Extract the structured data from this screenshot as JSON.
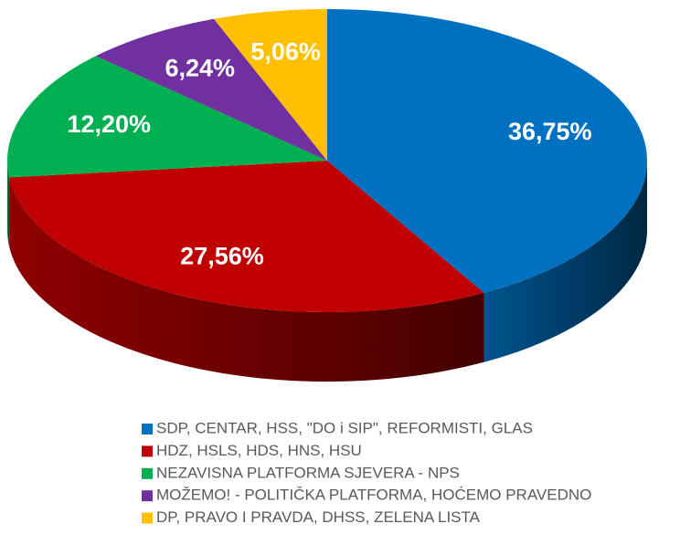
{
  "chart_data": {
    "type": "pie3d",
    "categories": [
      "SDP, CENTAR, HSS, \"DO i SIP\", REFORMISTI, GLAS",
      "HDZ, HSLS, HDS, HNS, HSU",
      "NEZAVISNA PLATFORMA SJEVERA - NPS",
      "MOŽEMO! - POLITIČKA PLATFORMA, HOĆEMO PRAVEDNO",
      "DP, PRAVO I PRAVDA, DHSS, ZELENA LISTA"
    ],
    "values": [
      36.75,
      27.56,
      12.2,
      6.24,
      5.06
    ],
    "value_labels": [
      "36,75%",
      "27,56%",
      "12,20%",
      "6,24%",
      "5,06%"
    ],
    "colors": [
      "#0070C0",
      "#C00000",
      "#00B050",
      "#7030A0",
      "#FFC000"
    ],
    "legend": "bottom"
  }
}
